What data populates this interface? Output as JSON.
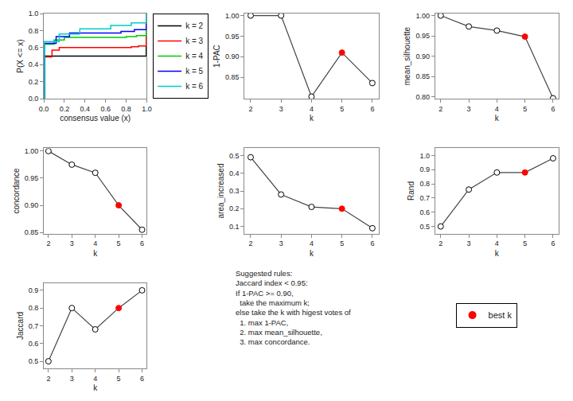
{
  "chart_data": [
    {
      "type": "line",
      "line_style": "step",
      "xlabel": "consensus value (x)",
      "ylabel": "P(X <= x)",
      "xlim": [
        0,
        1
      ],
      "ylim": [
        0,
        1
      ],
      "xticks": [
        {
          "value": 0,
          "label": "0.0"
        },
        0.2,
        0.4,
        0.6,
        0.8,
        {
          "value": 1,
          "label": "1.0"
        }
      ],
      "yticks": [
        {
          "value": 0,
          "label": "0.0"
        },
        0.2,
        0.4,
        0.6,
        0.8,
        {
          "value": 1,
          "label": "1.0"
        }
      ],
      "grid": false,
      "legend": "right",
      "series": [
        {
          "name": "k = 2",
          "color": "#000000",
          "x": [
            0.0,
            0.005,
            0.005,
            0.995,
            0.995,
            1.0
          ],
          "values": [
            0.0,
            0.0,
            0.5,
            0.5,
            1.0,
            1.0
          ]
        },
        {
          "name": "k = 3",
          "color": "#FF0000",
          "x": [
            0.0,
            0.005,
            0.005,
            0.08,
            0.15,
            0.85,
            0.92,
            0.995,
            0.995,
            1.0
          ],
          "values": [
            0.0,
            0.0,
            0.49,
            0.57,
            0.6,
            0.61,
            0.62,
            0.62,
            1.0,
            1.0
          ]
        },
        {
          "name": "k = 4",
          "color": "#00CC00",
          "x": [
            0.0,
            0.005,
            0.005,
            0.1,
            0.2,
            0.8,
            0.9,
            0.995,
            0.995,
            1.0
          ],
          "values": [
            0.0,
            0.0,
            0.64,
            0.69,
            0.72,
            0.73,
            0.74,
            0.74,
            1.0,
            1.0
          ]
        },
        {
          "name": "k = 5",
          "color": "#0000FF",
          "x": [
            0.0,
            0.005,
            0.005,
            0.12,
            0.25,
            0.75,
            0.88,
            0.995,
            0.995,
            1.0
          ],
          "values": [
            0.0,
            0.0,
            0.65,
            0.73,
            0.77,
            0.79,
            0.81,
            0.81,
            1.0,
            1.0
          ]
        },
        {
          "name": "k = 6",
          "color": "#00CCCC",
          "x": [
            0.0,
            0.005,
            0.005,
            0.15,
            0.35,
            0.65,
            0.85,
            0.995,
            0.995,
            1.0
          ],
          "values": [
            0.0,
            0.0,
            0.67,
            0.76,
            0.82,
            0.86,
            0.89,
            0.89,
            1.0,
            1.0
          ]
        }
      ]
    },
    {
      "type": "line",
      "marker": "circle",
      "xlabel": "k",
      "ylabel": "1-PAC",
      "x": [
        2,
        3,
        4,
        5,
        6
      ],
      "values": [
        1.0,
        1.0,
        0.803,
        0.91,
        0.836
      ],
      "color": "#444444",
      "colors": [
        "#FFFFFF",
        "#FFFFFF",
        "#FFFFFF",
        "#FF0000",
        "#FFFFFF"
      ],
      "xlim": [
        1.8,
        6.2
      ],
      "xticks": [
        2,
        3,
        4,
        5,
        6
      ],
      "ylim": [
        0.798,
        1.005
      ],
      "yticks": [
        0.85,
        {
          "value": 0.9,
          "label": "0.90"
        },
        0.95,
        {
          "value": 1,
          "label": "1.00"
        }
      ],
      "grid": false
    },
    {
      "type": "line",
      "marker": "circle",
      "xlabel": "k",
      "ylabel": "mean_silhouette",
      "x": [
        2,
        3,
        4,
        5,
        6
      ],
      "values": [
        1.0,
        0.973,
        0.963,
        0.948,
        0.796
      ],
      "color": "#444444",
      "colors": [
        "#FFFFFF",
        "#FFFFFF",
        "#FFFFFF",
        "#FF0000",
        "#FFFFFF"
      ],
      "xlim": [
        1.8,
        6.2
      ],
      "xticks": [
        2,
        3,
        4,
        5,
        6
      ],
      "ylim": [
        0.795,
        1.005
      ],
      "yticks": [
        {
          "value": 0.8,
          "label": "0.80"
        },
        0.85,
        {
          "value": 0.9,
          "label": "0.90"
        },
        0.95,
        {
          "value": 1,
          "label": "1.00"
        }
      ],
      "grid": false
    },
    {
      "type": "line",
      "marker": "circle",
      "xlabel": "k",
      "ylabel": "concordance",
      "x": [
        2,
        3,
        4,
        5,
        6
      ],
      "values": [
        1.0,
        0.975,
        0.96,
        0.9,
        0.855
      ],
      "color": "#444444",
      "colors": [
        "#FFFFFF",
        "#FFFFFF",
        "#FFFFFF",
        "#FF0000",
        "#FFFFFF"
      ],
      "xlim": [
        1.8,
        6.2
      ],
      "xticks": [
        2,
        3,
        4,
        5,
        6
      ],
      "ylim": [
        0.848,
        1.005
      ],
      "yticks": [
        0.85,
        {
          "value": 0.9,
          "label": "0.90"
        },
        0.95,
        {
          "value": 1,
          "label": "1.00"
        }
      ],
      "grid": false
    },
    {
      "type": "line",
      "marker": "circle",
      "xlabel": "k",
      "ylabel": "area_increased",
      "x": [
        2,
        3,
        4,
        5,
        6
      ],
      "values": [
        0.49,
        0.28,
        0.21,
        0.2,
        0.09
      ],
      "color": "#444444",
      "colors": [
        "#FFFFFF",
        "#FFFFFF",
        "#FFFFFF",
        "#FF0000",
        "#FFFFFF"
      ],
      "xlim": [
        1.8,
        6.2
      ],
      "xticks": [
        2,
        3,
        4,
        5,
        6
      ],
      "ylim": [
        0.06,
        0.54
      ],
      "yticks": [
        0.1,
        0.2,
        0.3,
        0.4,
        0.5
      ],
      "grid": false
    },
    {
      "type": "line",
      "marker": "circle",
      "xlabel": "k",
      "ylabel": "Rand",
      "x": [
        2,
        3,
        4,
        5,
        6
      ],
      "values": [
        0.5,
        0.76,
        0.88,
        0.88,
        0.98
      ],
      "color": "#444444",
      "colors": [
        "#FFFFFF",
        "#FFFFFF",
        "#FFFFFF",
        "#FF0000",
        "#FFFFFF"
      ],
      "xlim": [
        1.8,
        6.2
      ],
      "xticks": [
        2,
        3,
        4,
        5,
        6
      ],
      "ylim": [
        0.45,
        1.05
      ],
      "yticks": [
        0.5,
        0.6,
        0.7,
        0.8,
        0.9,
        {
          "value": 1,
          "label": "1.0"
        }
      ],
      "grid": false
    },
    {
      "type": "line",
      "marker": "circle",
      "xlabel": "k",
      "ylabel": "Jaccard",
      "x": [
        2,
        3,
        4,
        5,
        6
      ],
      "values": [
        0.5,
        0.8,
        0.68,
        0.8,
        0.9
      ],
      "color": "#444444",
      "colors": [
        "#FFFFFF",
        "#FFFFFF",
        "#FFFFFF",
        "#FF0000",
        "#FFFFFF"
      ],
      "xlim": [
        1.8,
        6.2
      ],
      "xticks": [
        2,
        3,
        4,
        5,
        6
      ],
      "ylim": [
        0.46,
        0.94
      ],
      "yticks": [
        0.5,
        0.6,
        0.7,
        0.8,
        0.9
      ],
      "grid": false
    },
    {
      "type": "annotation",
      "annotations": [
        "Suggested rules:\nJaccard index < 0.95:\nIf 1-PAC >= 0.90,\n  take the maximum k;\nelse take the k with higest votes of\n  1. max 1-PAC,\n  2. max mean_silhouette,\n  3. max concordance."
      ],
      "series": [
        {
          "name": "best k",
          "color": "#FF0000",
          "marker": "circle"
        }
      ],
      "legend": "right"
    }
  ]
}
